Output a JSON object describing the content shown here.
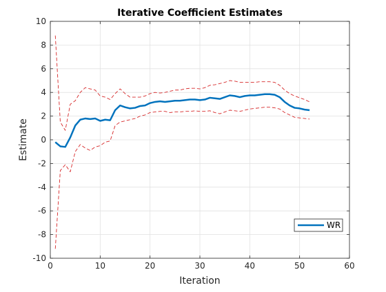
{
  "chart_data": {
    "type": "line",
    "title": "Iterative Coefficient Estimates",
    "xlabel": "Iteration",
    "ylabel": "Estimate",
    "xlim": [
      0,
      60
    ],
    "ylim": [
      -10,
      10
    ],
    "xticks": [
      0,
      10,
      20,
      30,
      40,
      50,
      60
    ],
    "yticks": [
      -10,
      -8,
      -6,
      -4,
      -2,
      0,
      2,
      4,
      6,
      8,
      10
    ],
    "grid": true,
    "legend_position": "bottom-right",
    "x": [
      1,
      2,
      3,
      4,
      5,
      6,
      7,
      8,
      9,
      10,
      11,
      12,
      13,
      14,
      15,
      16,
      17,
      18,
      19,
      20,
      21,
      22,
      23,
      24,
      25,
      26,
      27,
      28,
      29,
      30,
      31,
      32,
      33,
      34,
      35,
      36,
      37,
      38,
      39,
      40,
      41,
      42,
      43,
      44,
      45,
      46,
      47,
      48,
      49,
      50,
      51,
      52
    ],
    "series": [
      {
        "name": "WR",
        "role": "estimate",
        "color": "#0072bd",
        "style": "solid",
        "values": [
          -0.2,
          -0.55,
          -0.6,
          0.2,
          1.2,
          1.7,
          1.8,
          1.75,
          1.8,
          1.6,
          1.7,
          1.65,
          2.5,
          2.9,
          2.75,
          2.65,
          2.7,
          2.85,
          2.9,
          3.1,
          3.2,
          3.25,
          3.2,
          3.25,
          3.3,
          3.3,
          3.35,
          3.4,
          3.4,
          3.35,
          3.4,
          3.55,
          3.5,
          3.45,
          3.6,
          3.75,
          3.7,
          3.6,
          3.7,
          3.75,
          3.75,
          3.8,
          3.85,
          3.85,
          3.8,
          3.6,
          3.2,
          2.9,
          2.7,
          2.65,
          2.55,
          2.5
        ]
      },
      {
        "role": "upper-bound",
        "color": "#d62728",
        "style": "dashed",
        "values": [
          8.8,
          1.5,
          0.8,
          3.0,
          3.3,
          4.0,
          4.4,
          4.3,
          4.2,
          3.7,
          3.6,
          3.4,
          3.9,
          4.3,
          3.9,
          3.6,
          3.6,
          3.6,
          3.7,
          3.9,
          4.0,
          3.95,
          4.0,
          4.1,
          4.2,
          4.2,
          4.3,
          4.35,
          4.35,
          4.3,
          4.4,
          4.6,
          4.65,
          4.75,
          4.85,
          5.0,
          4.95,
          4.85,
          4.85,
          4.85,
          4.85,
          4.9,
          4.9,
          4.9,
          4.85,
          4.6,
          4.2,
          3.9,
          3.7,
          3.55,
          3.4,
          3.2
        ]
      },
      {
        "role": "lower-bound",
        "color": "#d62728",
        "style": "dashed",
        "values": [
          -9.2,
          -2.6,
          -2.1,
          -2.7,
          -1.0,
          -0.4,
          -0.7,
          -0.9,
          -0.6,
          -0.5,
          -0.2,
          -0.1,
          1.2,
          1.5,
          1.6,
          1.7,
          1.8,
          2.0,
          2.1,
          2.3,
          2.35,
          2.4,
          2.4,
          2.3,
          2.35,
          2.35,
          2.4,
          2.4,
          2.45,
          2.4,
          2.4,
          2.45,
          2.3,
          2.2,
          2.35,
          2.5,
          2.45,
          2.4,
          2.5,
          2.6,
          2.65,
          2.7,
          2.75,
          2.75,
          2.7,
          2.6,
          2.3,
          2.1,
          1.9,
          1.85,
          1.8,
          1.75
        ]
      }
    ]
  }
}
